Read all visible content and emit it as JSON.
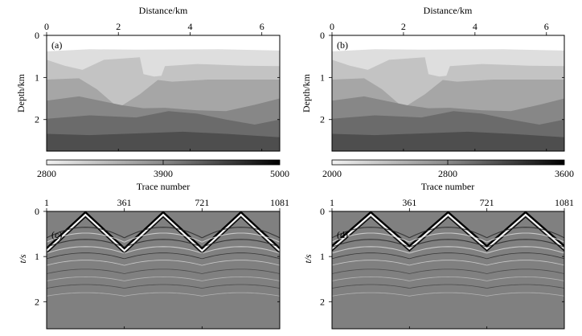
{
  "figure": {
    "panels": {
      "a": {
        "label": "(a)"
      },
      "b": {
        "label": "(b)"
      },
      "c": {
        "label": "(c)"
      },
      "d": {
        "label": "(d)"
      }
    }
  },
  "chart_data": [
    {
      "panel": "a",
      "type": "heatmap",
      "title": "",
      "xlabel": "Distance/km",
      "ylabel": "Depth/km",
      "xlim": [
        0,
        6.5
      ],
      "ylim": [
        0,
        2.75
      ],
      "x_ticks": [
        "0",
        "2",
        "4",
        "6"
      ],
      "y_ticks": [
        "0",
        "1",
        "2"
      ],
      "colorbar": {
        "min": 2800,
        "mid": 3900,
        "max": 5000,
        "tick_labels": [
          "2800",
          "3900",
          "5000"
        ]
      },
      "layers": [
        {
          "name": "layer-1",
          "value": 2800
        },
        {
          "name": "layer-2",
          "value": 3150
        },
        {
          "name": "layer-3",
          "value": 3500
        },
        {
          "name": "layer-4",
          "value": 3900
        },
        {
          "name": "layer-5",
          "value": 4300
        },
        {
          "name": "layer-6",
          "value": 4650
        },
        {
          "name": "layer-7",
          "value": 5000
        }
      ]
    },
    {
      "panel": "b",
      "type": "heatmap",
      "title": "",
      "xlabel": "Distance/km",
      "ylabel": "Depth/km",
      "xlim": [
        0,
        6.5
      ],
      "ylim": [
        0,
        2.75
      ],
      "x_ticks": [
        "0",
        "2",
        "4",
        "6"
      ],
      "y_ticks": [
        "0",
        "1",
        "2"
      ],
      "colorbar": {
        "min": 2000,
        "mid": 2800,
        "max": 3600,
        "tick_labels": [
          "2000",
          "2800",
          "3600"
        ]
      },
      "layers": [
        {
          "name": "layer-1",
          "value": 2000
        },
        {
          "name": "layer-2",
          "value": 2270
        },
        {
          "name": "layer-3",
          "value": 2530
        },
        {
          "name": "layer-4",
          "value": 2800
        },
        {
          "name": "layer-5",
          "value": 3070
        },
        {
          "name": "layer-6",
          "value": 3330
        },
        {
          "name": "layer-7",
          "value": 3600
        }
      ]
    },
    {
      "panel": "c",
      "type": "heatmap",
      "title": "",
      "xlabel": "Trace number",
      "ylabel": "t/s",
      "xlim": [
        1,
        1081
      ],
      "ylim": [
        0,
        2.6
      ],
      "x_ticks": [
        "1",
        "361",
        "721",
        "1081"
      ],
      "y_ticks": [
        "0",
        "1",
        "2"
      ],
      "peaks_trace": [
        181,
        541,
        901
      ],
      "troughs_trace": [
        361,
        721
      ],
      "trough_time_s": 0.8
    },
    {
      "panel": "d",
      "type": "heatmap",
      "title": "",
      "xlabel": "Trace number",
      "ylabel": "t/s",
      "xlim": [
        1,
        1081
      ],
      "ylim": [
        0,
        2.6
      ],
      "x_ticks": [
        "1",
        "361",
        "721",
        "1081"
      ],
      "y_ticks": [
        "0",
        "1",
        "2"
      ],
      "peaks_trace": [
        181,
        541,
        901
      ],
      "troughs_trace": [
        361,
        721
      ],
      "trough_time_s": 0.75
    }
  ]
}
